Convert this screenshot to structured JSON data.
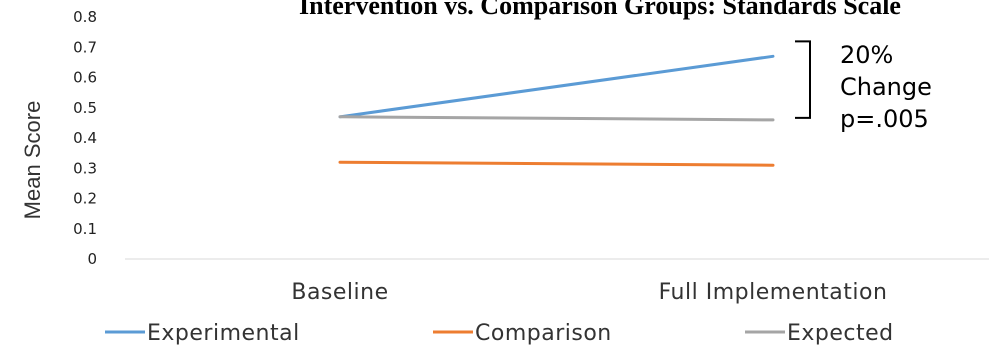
{
  "chart_data": {
    "type": "line",
    "title": "Intervention vs. Comparison Groups: Standards Scale",
    "xlabel": "",
    "ylabel": "Mean Score",
    "categories": [
      "Baseline",
      "Full Implementation"
    ],
    "ylim": [
      0,
      0.8
    ],
    "yticks": [
      "0",
      "0.1",
      "0.2",
      "0.3",
      "0.4",
      "0.5",
      "0.6",
      "0.7",
      "0.8"
    ],
    "grid": false,
    "legend_position": "bottom",
    "series": [
      {
        "name": "Experimental",
        "values": [
          0.47,
          0.67
        ],
        "color": "#5B9BD5"
      },
      {
        "name": "Comparison",
        "values": [
          0.32,
          0.31
        ],
        "color": "#ED7D31"
      },
      {
        "name": "Expected",
        "values": [
          0.47,
          0.46
        ],
        "color": "#A5A5A5"
      }
    ],
    "annotation": {
      "lines": [
        "20%",
        "Change",
        "p=.005"
      ],
      "bracket_range": [
        0.47,
        0.67
      ]
    }
  }
}
